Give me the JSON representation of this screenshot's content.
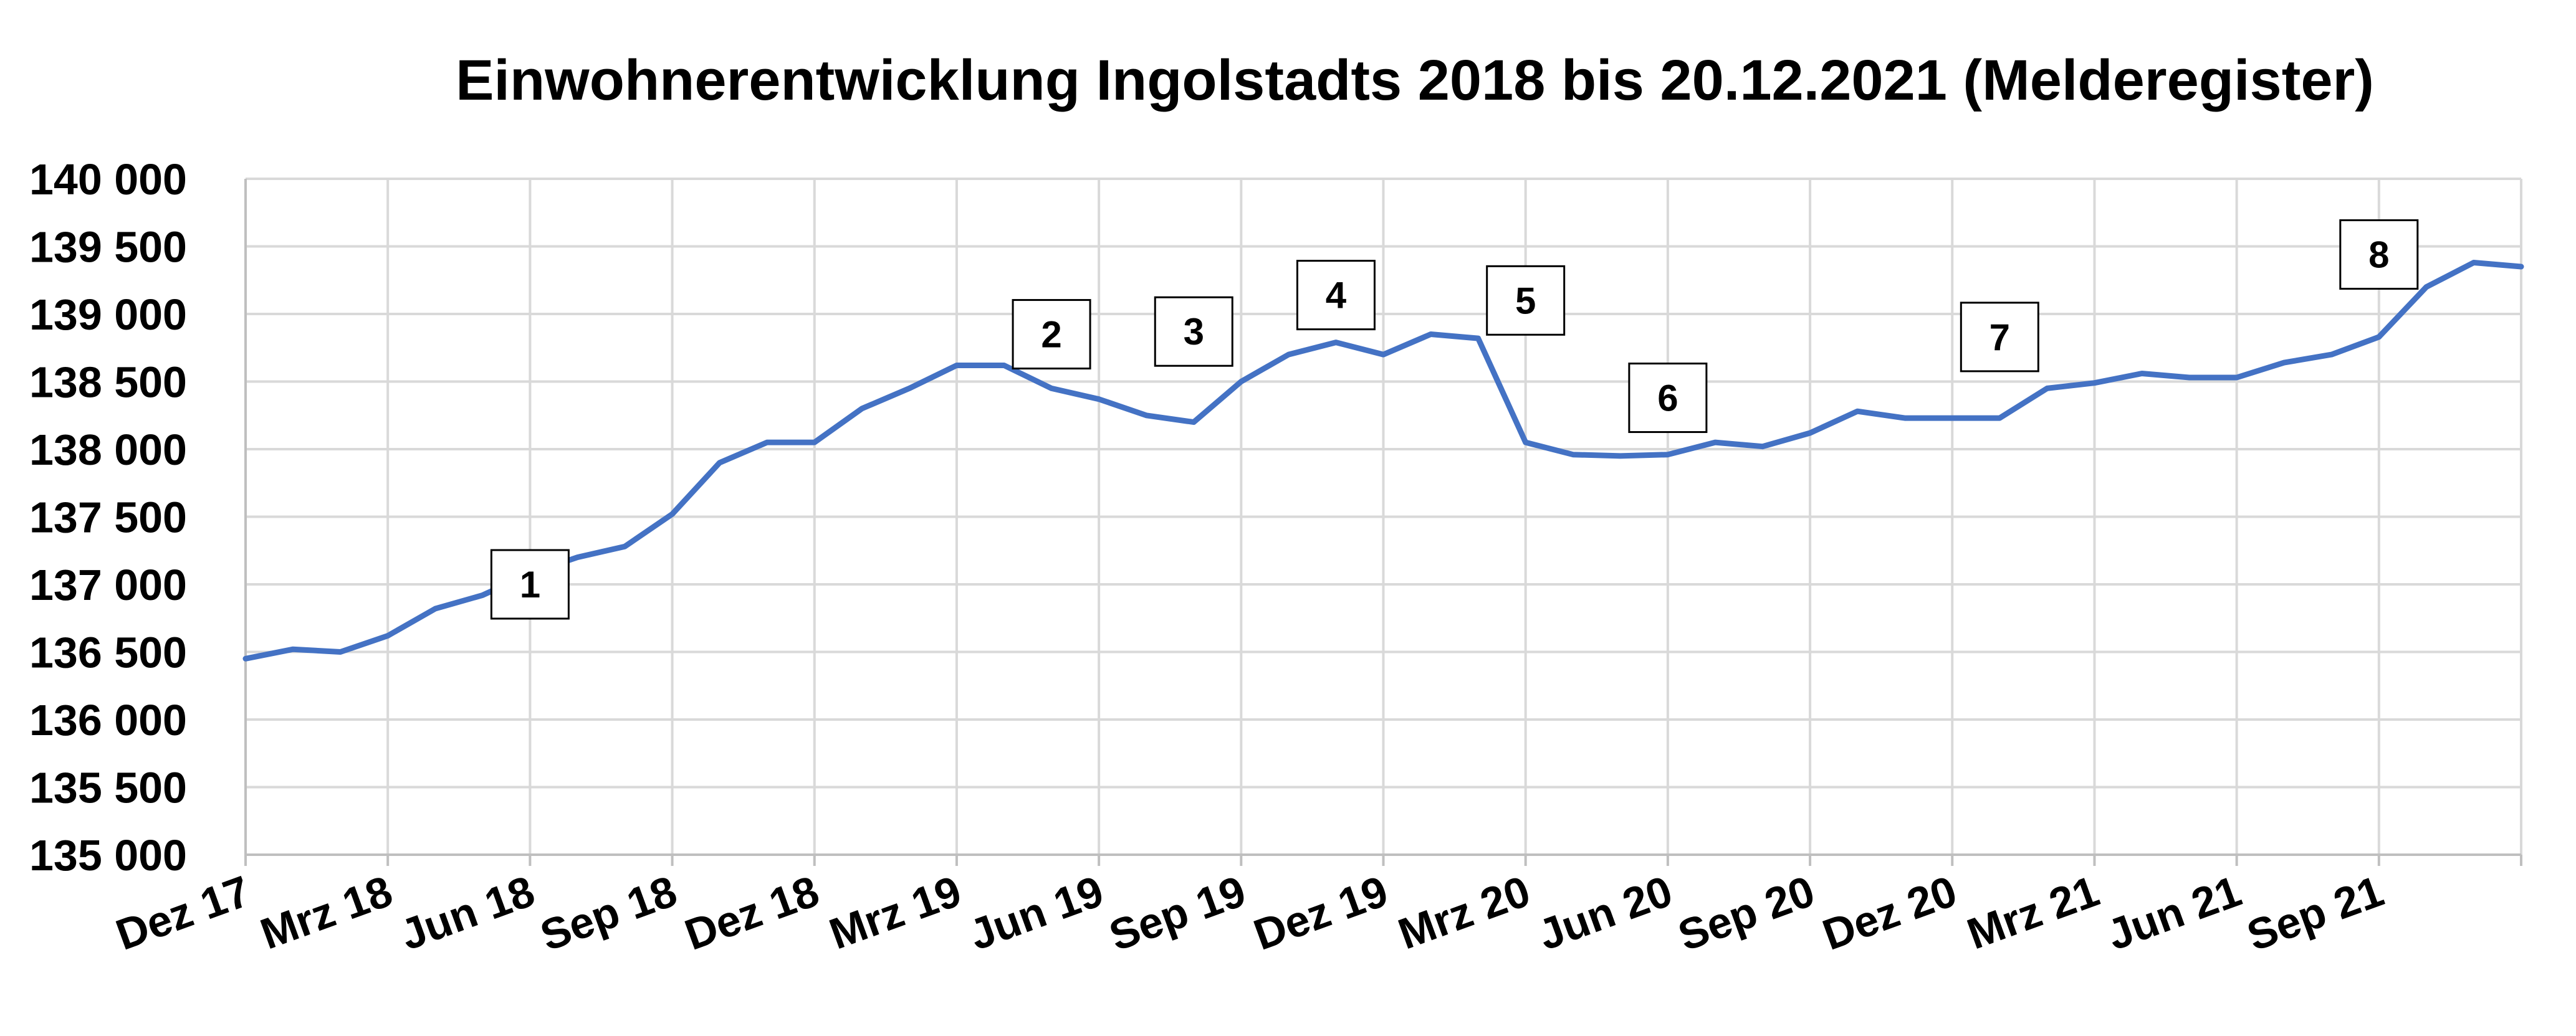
{
  "chart_data": {
    "type": "line",
    "title": "Einwohnerentwicklung Ingolstadts 2018 bis 20.12.2021 (Melderegister)",
    "xlabel": "",
    "ylabel": "",
    "ylim": [
      135000,
      140000
    ],
    "ytick_values": [
      135000,
      135500,
      136000,
      136500,
      137000,
      137500,
      138000,
      138500,
      139000,
      139500,
      140000
    ],
    "ytick_labels": [
      "135 000",
      "135 500",
      "136 000",
      "136 500",
      "137 000",
      "137 500",
      "138 000",
      "138 500",
      "139 000",
      "139 500",
      "140 000"
    ],
    "xtick_labels": [
      "Dez 17",
      "Mrz 18",
      "Jun 18",
      "Sep 18",
      "Dez 18",
      "Mrz 19",
      "Jun 19",
      "Sep 19",
      "Dez 19",
      "Mrz 20",
      "Jun 20",
      "Sep 20",
      "Dez 20",
      "Mrz 21",
      "Jun 21",
      "Sep 21"
    ],
    "grid": true,
    "line_color": "#4472C4",
    "series": [
      {
        "x": [
          "2017-12",
          "2018-01",
          "2018-02",
          "2018-03",
          "2018-04",
          "2018-05",
          "2018-06",
          "2018-07",
          "2018-08",
          "2018-09",
          "2018-10",
          "2018-11",
          "2018-12",
          "2019-01",
          "2019-02",
          "2019-03",
          "2019-04",
          "2019-05",
          "2019-06",
          "2019-07",
          "2019-08",
          "2019-09",
          "2019-10",
          "2019-11",
          "2019-12",
          "2020-01",
          "2020-02",
          "2020-03",
          "2020-04",
          "2020-05",
          "2020-06",
          "2020-07",
          "2020-08",
          "2020-09",
          "2020-10",
          "2020-11",
          "2020-12",
          "2021-01",
          "2021-02",
          "2021-03",
          "2021-04",
          "2021-05",
          "2021-06",
          "2021-07",
          "2021-08",
          "2021-09",
          "2021-10",
          "2021-11",
          "2021-12"
        ],
        "values": [
          136450,
          136520,
          136500,
          136620,
          136820,
          136920,
          137080,
          137200,
          137280,
          137520,
          137900,
          138050,
          138050,
          138300,
          138450,
          138620,
          138620,
          138450,
          138370,
          138250,
          138200,
          138500,
          138700,
          138790,
          138700,
          138850,
          138820,
          138050,
          137960,
          137950,
          137960,
          138050,
          138020,
          138120,
          138280,
          138230,
          138230,
          138230,
          138450,
          138490,
          138560,
          138530,
          138530,
          138640,
          138700,
          138830,
          139200,
          139380,
          139350
        ]
      }
    ]
  },
  "annotations": [
    {
      "label": "1",
      "x": "2018-06",
      "y": 137000
    },
    {
      "label": "2",
      "x": "2019-05",
      "y": 138850
    },
    {
      "label": "3",
      "x": "2019-08",
      "y": 138870
    },
    {
      "label": "4",
      "x": "2019-11",
      "y": 139140
    },
    {
      "label": "5",
      "x": "2020-03",
      "y": 139100
    },
    {
      "label": "6",
      "x": "2020-06",
      "y": 138380
    },
    {
      "label": "7",
      "x": "2021-01",
      "y": 138830
    },
    {
      "label": "8",
      "x": "2021-09",
      "y": 139440
    }
  ]
}
